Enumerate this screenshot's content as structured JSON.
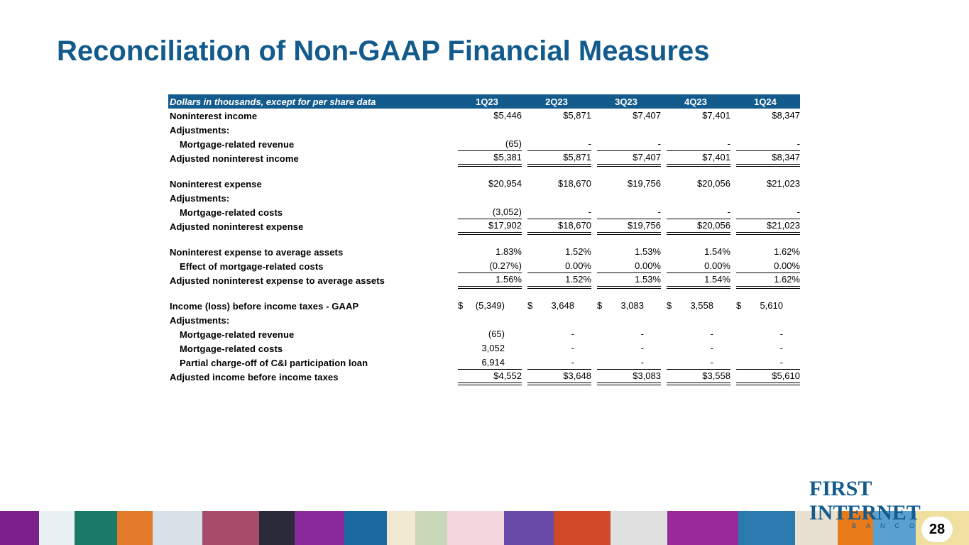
{
  "title": "Reconciliation of Non-GAAP Financial Measures",
  "table": {
    "header": [
      "Dollars in thousands, except for per share data",
      "1Q23",
      "2Q23",
      "3Q23",
      "4Q23",
      "1Q24"
    ],
    "rows": [
      {
        "label": "Noninterest income",
        "values": [
          "$5,446",
          "$5,871",
          "$7,407",
          "$7,401",
          "$8,347"
        ]
      },
      {
        "label": "Adjustments:",
        "values": []
      },
      {
        "label": "Mortgage-related revenue",
        "values": [
          "(65)",
          "-",
          "-",
          "-",
          "-"
        ]
      },
      {
        "label": "Adjusted noninterest income",
        "values": [
          "$5,381",
          "$5,871",
          "$7,407",
          "$7,401",
          "$8,347"
        ]
      },
      {
        "label": "Noninterest expense",
        "values": [
          "$20,954",
          "$18,670",
          "$19,756",
          "$20,056",
          "$21,023"
        ]
      },
      {
        "label": "Adjustments:",
        "values": []
      },
      {
        "label": "Mortgage-related costs",
        "values": [
          "(3,052)",
          "-",
          "-",
          "-",
          "-"
        ]
      },
      {
        "label": "Adjusted noninterest expense",
        "values": [
          "$17,902",
          "$18,670",
          "$19,756",
          "$20,056",
          "$21,023"
        ]
      },
      {
        "label": "Noninterest expense to average assets",
        "values": [
          "1.83%",
          "1.52%",
          "1.53%",
          "1.54%",
          "1.62%"
        ]
      },
      {
        "label": "Effect of mortgage-related costs",
        "values": [
          "(0.27%)",
          "0.00%",
          "0.00%",
          "0.00%",
          "0.00%"
        ]
      },
      {
        "label": "Adjusted noninterest expense to average assets",
        "values": [
          "1.56%",
          "1.52%",
          "1.53%",
          "1.54%",
          "1.62%"
        ]
      },
      {
        "label": "Income (loss) before income taxes - GAAP",
        "prefix": "$",
        "values": [
          "(5,349)",
          "3,648",
          "3,083",
          "3,558",
          "5,610"
        ]
      },
      {
        "label": "Adjustments:",
        "values": []
      },
      {
        "label": "Mortgage-related revenue",
        "values": [
          "(65)",
          "-",
          "-",
          "-",
          "-"
        ]
      },
      {
        "label": "Mortgage-related costs",
        "values": [
          "3,052",
          "-",
          "-",
          "-",
          "-"
        ]
      },
      {
        "label": "Partial charge-off of C&I participation loan",
        "values": [
          "6,914",
          "-",
          "-",
          "-",
          "-"
        ]
      },
      {
        "label": "Adjusted income before income taxes",
        "values": [
          "$4,552",
          "$3,648",
          "$3,083",
          "$3,558",
          "$5,610"
        ]
      }
    ]
  },
  "logo": {
    "name": "FIRST INTERNET",
    "sub": "BANCORP"
  },
  "page_number": "28"
}
